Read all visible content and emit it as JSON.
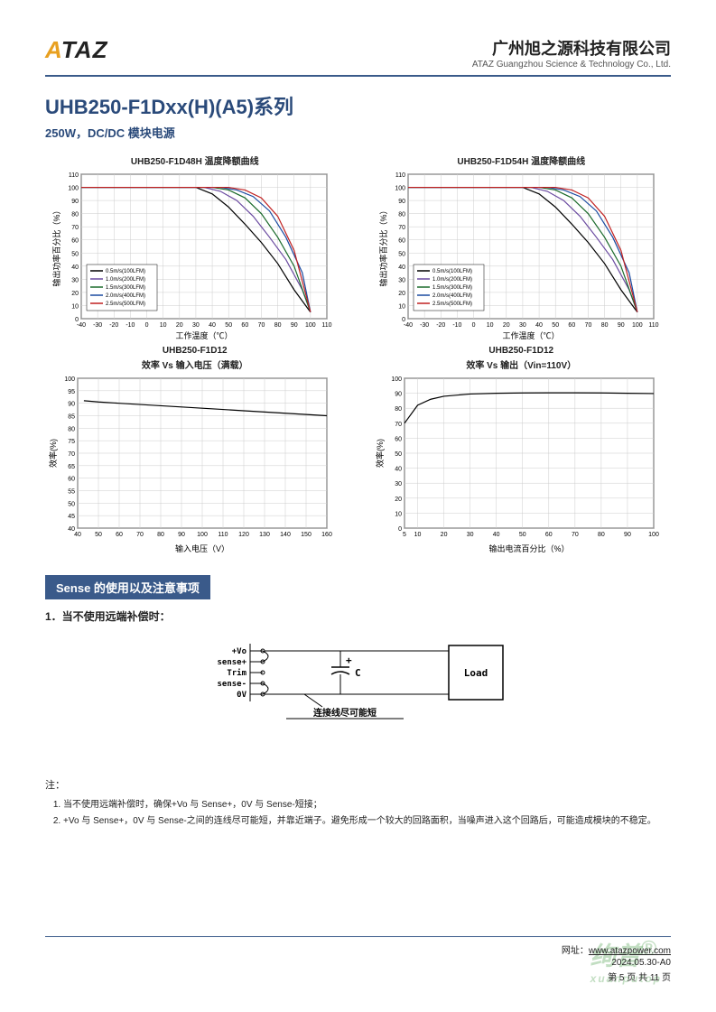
{
  "header": {
    "logo_text": "ATAZ",
    "company_cn": "广州旭之源科技有限公司",
    "company_en": "ATAZ Guangzhou Science & Technology Co., Ltd."
  },
  "title": {
    "main": "UHB250-F1Dxx(H)(A5)系列",
    "sub": "250W，DC/DC 模块电源"
  },
  "chart1": {
    "type": "line",
    "title": "UHB250-F1D48H 温度降额曲线",
    "xlabel": "工作温度（℃）",
    "ylabel": "输出功率百分比（%）",
    "xlim": [
      -40,
      110
    ],
    "ylim": [
      0,
      110
    ],
    "xticks": [
      -40,
      -30,
      -20,
      -10,
      0,
      10,
      20,
      30,
      40,
      50,
      60,
      70,
      80,
      90,
      100,
      110
    ],
    "yticks": [
      0,
      10,
      20,
      30,
      40,
      50,
      60,
      70,
      80,
      90,
      100,
      110
    ],
    "grid_color": "#cccccc",
    "background_color": "#ffffff",
    "line_width": 1.2,
    "series": [
      {
        "name": "0.5m/s(100LFM)",
        "color": "#000000",
        "x": [
          -40,
          30,
          40,
          50,
          60,
          70,
          80,
          90,
          100
        ],
        "y": [
          100,
          100,
          95,
          85,
          72,
          58,
          42,
          22,
          5
        ]
      },
      {
        "name": "1.0m/s(200LFM)",
        "color": "#6a4aa0",
        "x": [
          -40,
          35,
          45,
          55,
          65,
          75,
          85,
          95,
          100
        ],
        "y": [
          100,
          100,
          97,
          90,
          78,
          62,
          45,
          22,
          5
        ]
      },
      {
        "name": "1.5m/s(300LFM)",
        "color": "#1a6a2a",
        "x": [
          -40,
          40,
          50,
          60,
          70,
          80,
          90,
          100
        ],
        "y": [
          100,
          100,
          98,
          92,
          80,
          62,
          40,
          5
        ]
      },
      {
        "name": "2.0m/s(400LFM)",
        "color": "#1a4aa0",
        "x": [
          -40,
          45,
          55,
          65,
          75,
          85,
          95,
          100
        ],
        "y": [
          100,
          100,
          98,
          93,
          82,
          62,
          35,
          5
        ]
      },
      {
        "name": "2.5m/s(500LFM)",
        "color": "#c02020",
        "x": [
          -40,
          50,
          60,
          70,
          80,
          90,
          100
        ],
        "y": [
          100,
          100,
          98,
          92,
          78,
          52,
          5
        ]
      }
    ]
  },
  "chart2": {
    "type": "line",
    "title": "UHB250-F1D54H 温度降额曲线",
    "xlabel": "工作温度（℃）",
    "ylabel": "输出功率百分比（%）",
    "xlim": [
      -40,
      110
    ],
    "ylim": [
      0,
      110
    ],
    "xticks": [
      -40,
      -30,
      -20,
      -10,
      0,
      10,
      20,
      30,
      40,
      50,
      60,
      70,
      80,
      90,
      100,
      110
    ],
    "yticks": [
      0,
      10,
      20,
      30,
      40,
      50,
      60,
      70,
      80,
      90,
      100,
      110
    ],
    "grid_color": "#cccccc",
    "line_width": 1.2,
    "series": [
      {
        "name": "0.5m/s(100LFM)",
        "color": "#000000",
        "x": [
          -40,
          30,
          40,
          50,
          60,
          70,
          80,
          90,
          100
        ],
        "y": [
          100,
          100,
          95,
          85,
          72,
          58,
          42,
          22,
          5
        ]
      },
      {
        "name": "1.0m/s(200LFM)",
        "color": "#6a4aa0",
        "x": [
          -40,
          35,
          45,
          55,
          65,
          75,
          85,
          95,
          100
        ],
        "y": [
          100,
          100,
          97,
          90,
          78,
          62,
          45,
          22,
          5
        ]
      },
      {
        "name": "1.5m/s(300LFM)",
        "color": "#1a6a2a",
        "x": [
          -40,
          40,
          50,
          60,
          70,
          80,
          90,
          100
        ],
        "y": [
          100,
          100,
          98,
          92,
          80,
          62,
          40,
          5
        ]
      },
      {
        "name": "2.0m/s(400LFM)",
        "color": "#1a4aa0",
        "x": [
          -40,
          45,
          55,
          65,
          75,
          85,
          95,
          100
        ],
        "y": [
          100,
          100,
          98,
          93,
          82,
          62,
          35,
          5
        ]
      },
      {
        "name": "2.5m/s(500LFM)",
        "color": "#c02020",
        "x": [
          -40,
          50,
          60,
          70,
          80,
          90,
          100
        ],
        "y": [
          100,
          100,
          98,
          92,
          78,
          52,
          5
        ]
      }
    ]
  },
  "chart3": {
    "type": "line",
    "title_upper": "UHB250-F1D12",
    "title": "效率 Vs 输入电压（满载）",
    "xlabel": "输入电压（V）",
    "ylabel": "效率(%)",
    "xlim": [
      40,
      160
    ],
    "ylim": [
      40,
      100
    ],
    "xticks": [
      40,
      50,
      60,
      70,
      80,
      90,
      100,
      110,
      120,
      130,
      140,
      150,
      160
    ],
    "yticks": [
      40,
      45,
      50,
      55,
      60,
      65,
      70,
      75,
      80,
      85,
      90,
      95,
      100
    ],
    "grid_color": "#cccccc",
    "line_color": "#000000",
    "line_width": 1.2,
    "x": [
      43,
      50,
      60,
      70,
      80,
      90,
      100,
      110,
      120,
      130,
      140,
      150,
      160
    ],
    "y": [
      91,
      90.5,
      90,
      89.5,
      89,
      88.5,
      88,
      87.5,
      87,
      86.5,
      86,
      85.5,
      85
    ]
  },
  "chart4": {
    "type": "line",
    "title_upper": "UHB250-F1D12",
    "title": "效率 Vs 输出（Vin=110V）",
    "xlabel": "输出电流百分比（%）",
    "ylabel": "效率(%)",
    "xlim": [
      5,
      100
    ],
    "ylim": [
      0,
      100
    ],
    "xticks": [
      5,
      10,
      20,
      30,
      40,
      50,
      60,
      70,
      80,
      90,
      100
    ],
    "yticks": [
      0,
      10,
      20,
      30,
      40,
      50,
      60,
      70,
      80,
      90,
      100
    ],
    "grid_color": "#cccccc",
    "line_color": "#000000",
    "line_width": 1.2,
    "x": [
      5,
      10,
      15,
      20,
      30,
      40,
      50,
      60,
      70,
      80,
      90,
      100
    ],
    "y": [
      70,
      82,
      86,
      88,
      89.5,
      90,
      90.2,
      90.3,
      90.3,
      90.2,
      90,
      89.8
    ]
  },
  "section": {
    "header": "Sense 的使用以及注意事项",
    "item1": "1．当不使用远端补偿时："
  },
  "diagram": {
    "labels": {
      "vo": "+Vo",
      "sensep": "sense+",
      "trim": "Trim",
      "sensem": "sense-",
      "zero": "0V",
      "cap": "C",
      "load": "Load",
      "note": "连接线尽可能短"
    }
  },
  "notes": {
    "label": "注：",
    "items": [
      "当不使用远端补偿时，确保+Vo 与 Sense+，0V 与 Sense-短接；",
      "+Vo 与 Sense+，0V 与 Sense-之间的连线尽可能短，并靠近端子。避免形成一个较大的回路面积，当噪声进入这个回路后，可能造成模块的不稳定。"
    ]
  },
  "footer": {
    "url_label": "网址：",
    "url": "www.atazpower.com",
    "date": "2024.05.30-A0",
    "page": "第 5 页 共 11 页"
  },
  "watermark": {
    "main": "绚普",
    "reg": "®",
    "sub": "xuanputop"
  }
}
